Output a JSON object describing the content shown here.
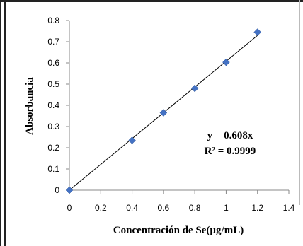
{
  "chart_data": {
    "type": "scatter",
    "title": "",
    "xlabel": "Concentración de Se(µg/mL)",
    "ylabel": "Absorbancia",
    "xlim": [
      0,
      1.4
    ],
    "ylim": [
      0,
      0.8
    ],
    "x_ticks": [
      "0",
      "0.2",
      "0.4",
      "0.6",
      "0.8",
      "1",
      "1.2",
      "1.4"
    ],
    "y_ticks": [
      "0",
      "0.1",
      "0.2",
      "0.3",
      "0.4",
      "0.5",
      "0.6",
      "0.7",
      "0.8"
    ],
    "grid": false,
    "legend": "none",
    "series": [
      {
        "x": [
          0,
          0.4,
          0.6,
          0.8,
          1.0,
          1.2
        ],
        "y": [
          0,
          0.235,
          0.365,
          0.48,
          0.603,
          0.745
        ],
        "marker": "diamond",
        "color": "#4472C4"
      }
    ],
    "trendline": {
      "slope": 0.608,
      "intercept": 0,
      "color": "#000000",
      "equation": "y = 0.608x",
      "r_squared": "R² = 0.9999"
    }
  }
}
